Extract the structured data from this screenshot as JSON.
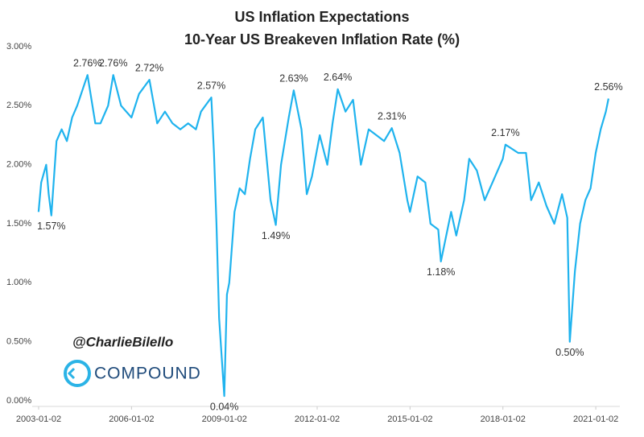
{
  "chart_data": {
    "type": "line",
    "title": "US Inflation Expectations",
    "subtitle": "10-Year US Breakeven Inflation Rate (%)",
    "x": [
      "2003-01-01",
      "2003-02-01",
      "2003-04-01",
      "2003-05-01",
      "2003-06-01",
      "2003-08-01",
      "2003-10-01",
      "2003-12-01",
      "2004-02-01",
      "2004-04-01",
      "2004-08-01",
      "2004-11-01",
      "2005-01-01",
      "2005-04-01",
      "2005-06-01",
      "2005-09-01",
      "2006-01-01",
      "2006-04-01",
      "2006-08-01",
      "2006-11-01",
      "2007-02-01",
      "2007-05-01",
      "2007-08-01",
      "2007-11-01",
      "2008-02-01",
      "2008-04-01",
      "2008-08-01",
      "2008-09-01",
      "2008-10-01",
      "2008-11-01",
      "2009-01-01",
      "2009-02-01",
      "2009-03-01",
      "2009-05-01",
      "2009-07-01",
      "2009-09-01",
      "2009-11-01",
      "2010-01-01",
      "2010-04-01",
      "2010-07-01",
      "2010-09-01",
      "2010-11-01",
      "2011-02-01",
      "2011-04-01",
      "2011-07-01",
      "2011-09-01",
      "2011-11-01",
      "2012-02-01",
      "2012-05-01",
      "2012-07-01",
      "2012-09-01",
      "2012-12-01",
      "2013-03-01",
      "2013-06-01",
      "2013-09-01",
      "2013-12-01",
      "2014-03-01",
      "2014-06-01",
      "2014-09-01",
      "2014-12-01",
      "2015-01-01",
      "2015-04-01",
      "2015-07-01",
      "2015-09-01",
      "2015-12-01",
      "2016-01-01",
      "2016-05-01",
      "2016-07-01",
      "2016-10-01",
      "2016-12-01",
      "2017-03-01",
      "2017-06-01",
      "2017-09-01",
      "2018-01-01",
      "2018-02-01",
      "2018-07-01",
      "2018-10-01",
      "2018-12-01",
      "2019-03-01",
      "2019-06-01",
      "2019-09-01",
      "2019-12-01",
      "2020-02-01",
      "2020-03-01",
      "2020-05-01",
      "2020-07-01",
      "2020-09-01",
      "2020-11-01",
      "2021-01-01",
      "2021-03-01",
      "2021-05-01",
      "2021-06-01"
    ],
    "series": [
      {
        "name": "10-Year US Breakeven Inflation Rate",
        "color": "#1fb3ee",
        "values": [
          1.6,
          1.85,
          2.0,
          1.75,
          1.57,
          2.2,
          2.3,
          2.2,
          2.4,
          2.5,
          2.76,
          2.35,
          2.35,
          2.5,
          2.76,
          2.5,
          2.4,
          2.6,
          2.72,
          2.35,
          2.45,
          2.35,
          2.3,
          2.35,
          2.3,
          2.45,
          2.57,
          2.1,
          1.5,
          0.7,
          0.04,
          0.9,
          1.0,
          1.6,
          1.8,
          1.75,
          2.05,
          2.3,
          2.4,
          1.7,
          1.49,
          2.0,
          2.4,
          2.63,
          2.3,
          1.75,
          1.9,
          2.25,
          2.0,
          2.35,
          2.64,
          2.45,
          2.55,
          2.0,
          2.3,
          2.25,
          2.2,
          2.31,
          2.1,
          1.7,
          1.6,
          1.9,
          1.85,
          1.5,
          1.45,
          1.18,
          1.6,
          1.4,
          1.7,
          2.05,
          1.95,
          1.7,
          1.85,
          2.05,
          2.17,
          2.1,
          2.1,
          1.7,
          1.85,
          1.65,
          1.5,
          1.75,
          1.55,
          0.5,
          1.1,
          1.5,
          1.7,
          1.8,
          2.1,
          2.3,
          2.45,
          2.56
        ]
      }
    ],
    "annotations": [
      {
        "x": "2003-06-01",
        "y": 1.57,
        "label": "1.57%"
      },
      {
        "x": "2004-08-01",
        "y": 2.76,
        "label": "2.76%"
      },
      {
        "x": "2005-06-01",
        "y": 2.76,
        "label": "2.76%"
      },
      {
        "x": "2006-08-01",
        "y": 2.72,
        "label": "2.72%"
      },
      {
        "x": "2008-08-01",
        "y": 2.57,
        "label": "2.57%"
      },
      {
        "x": "2009-01-01",
        "y": 0.04,
        "label": "0.04%"
      },
      {
        "x": "2010-09-01",
        "y": 1.49,
        "label": "1.49%"
      },
      {
        "x": "2011-04-01",
        "y": 2.63,
        "label": "2.63%"
      },
      {
        "x": "2012-09-01",
        "y": 2.64,
        "label": "2.64%"
      },
      {
        "x": "2014-06-01",
        "y": 2.31,
        "label": "2.31%"
      },
      {
        "x": "2016-01-01",
        "y": 1.18,
        "label": "1.18%"
      },
      {
        "x": "2018-02-01",
        "y": 2.17,
        "label": "2.17%"
      },
      {
        "x": "2020-03-01",
        "y": 0.5,
        "label": "0.50%"
      },
      {
        "x": "2021-06-01",
        "y": 2.56,
        "label": "2.56%"
      }
    ],
    "xlim": [
      "2003-01-02",
      "2021-07-10"
    ],
    "xticks": [
      "2003-01-02",
      "2006-01-02",
      "2009-01-02",
      "2012-01-02",
      "2015-01-02",
      "2018-01-02",
      "2021-01-02"
    ],
    "ylim": [
      0,
      3
    ],
    "yticks": [
      {
        "value": 0,
        "label": "0.00%"
      },
      {
        "value": 0.5,
        "label": "0.50%"
      },
      {
        "value": 1,
        "label": "1.00%"
      },
      {
        "value": 1.5,
        "label": "1.50%"
      },
      {
        "value": 2,
        "label": "2.00%"
      },
      {
        "value": 2.5,
        "label": "2.50%"
      },
      {
        "value": 3,
        "label": "3.00%"
      }
    ],
    "grid": false,
    "handle": "@CharlieBilello",
    "brand": "COMPOUND"
  }
}
